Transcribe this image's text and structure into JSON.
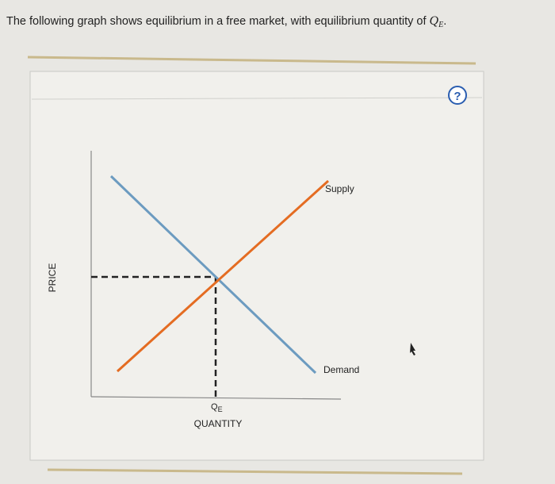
{
  "header": {
    "text": "The following graph shows equilibrium in a free market, with equilibrium quantity of ",
    "variable": "Q",
    "subscript": "E",
    "end": "."
  },
  "help": "?",
  "graph": {
    "y_axis_label": "PRICE",
    "x_axis_label": "QUANTITY",
    "supply_label": "Supply",
    "demand_label": "Demand",
    "equilibrium_label": {
      "variable": "Q",
      "subscript": "E"
    }
  }
}
